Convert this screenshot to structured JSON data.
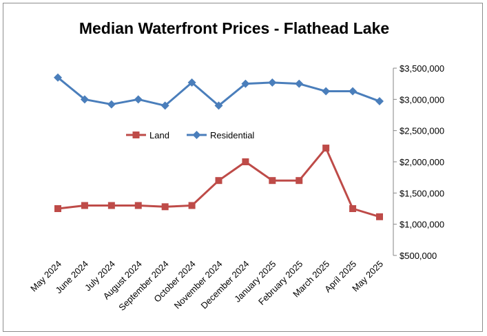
{
  "chart_data": {
    "type": "line",
    "title": "Median Waterfront Prices - Flathead Lake",
    "xlabel": "",
    "ylabel": "",
    "categories": [
      "May 2024",
      "June 2024",
      "July 2024",
      "August 2024",
      "September 2024",
      "October 2024",
      "November 2024",
      "December 2024",
      "January 2025",
      "February 2025",
      "March 2025",
      "April 2025",
      "May 2025"
    ],
    "ylim": [
      500000,
      3500000
    ],
    "yticks": [
      500000,
      1000000,
      1500000,
      2000000,
      2500000,
      3000000,
      3500000
    ],
    "ytick_labels": [
      "$500,000",
      "$1,000,000",
      "$1,500,000",
      "$2,000,000",
      "$2,500,000",
      "$3,000,000",
      "$3,500,000"
    ],
    "y_axis_side": "right",
    "grid": false,
    "legend_position": "inside-upper-left",
    "series": [
      {
        "name": "Land",
        "color": "#be4b48",
        "marker": "square",
        "values": [
          1250000,
          1300000,
          1300000,
          1300000,
          1280000,
          1300000,
          1700000,
          2000000,
          1700000,
          1700000,
          2220000,
          1250000,
          1120000
        ]
      },
      {
        "name": "Residential",
        "color": "#4a7ebb",
        "marker": "diamond",
        "values": [
          3350000,
          3000000,
          2920000,
          3000000,
          2900000,
          3270000,
          2900000,
          3250000,
          3270000,
          3250000,
          3130000,
          3130000,
          2970000
        ]
      }
    ]
  }
}
